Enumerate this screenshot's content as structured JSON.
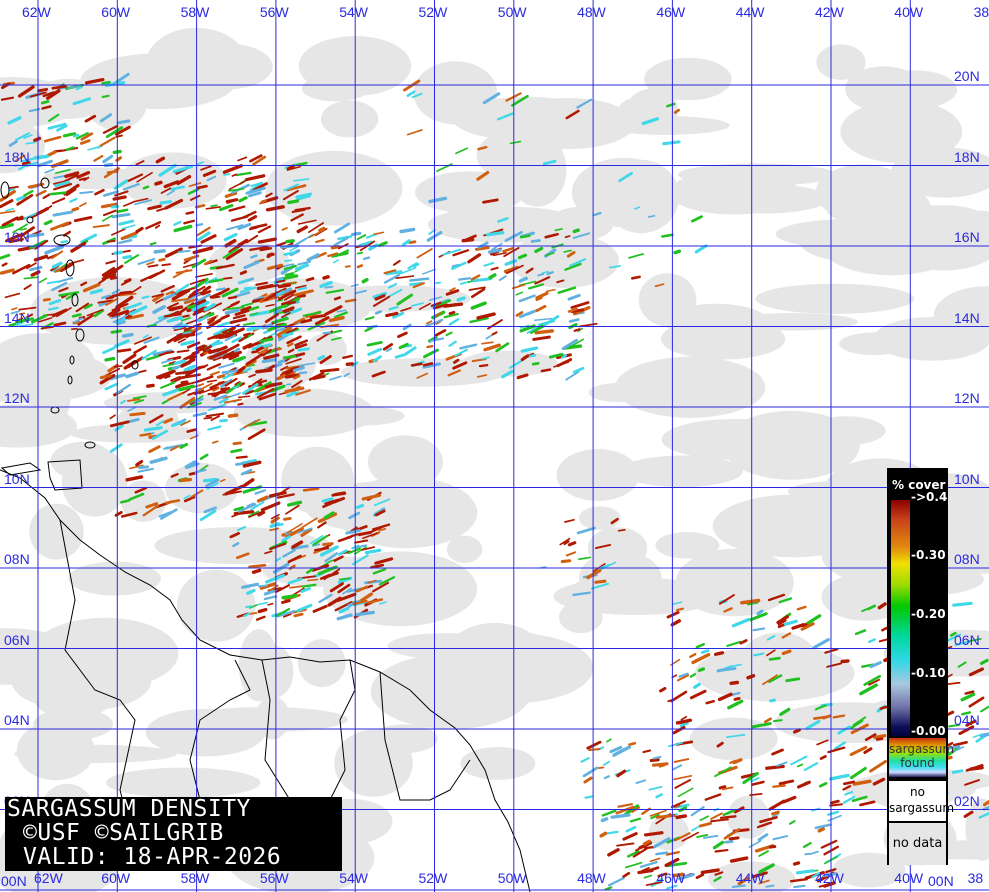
{
  "map": {
    "title": "SARGASSUM DENSITY",
    "credits": "©USF ©SAILGRIB",
    "valid": "VALID: 18-APR-2026",
    "longitude_labels": [
      "62W",
      "60W",
      "58W",
      "56W",
      "54W",
      "52W",
      "50W",
      "48W",
      "46W",
      "44W",
      "42W",
      "40W",
      "38"
    ],
    "latitude_labels_right": [
      "20N",
      "18N",
      "16N",
      "14N",
      "12N",
      "10N",
      "08N",
      "06N",
      "04N",
      "02N",
      "00N"
    ],
    "latitude_labels_left": [
      "18N",
      "16N",
      "14N",
      "12N",
      "10N",
      "08N",
      "06N",
      "04N",
      "02N",
      "00N"
    ],
    "colors": {
      "grid": "#2a2ae0",
      "cloud": "#e6e6e6",
      "land_outline": "#000000",
      "high_density": "#b01800",
      "medium": "#20c020",
      "low": "#40d8e8"
    }
  },
  "legend": {
    "title": "% cover",
    "ticks": [
      "->0.4",
      "-0.30",
      "-0.20",
      "-0.10",
      "-0.00"
    ],
    "found_label_1": "sargassum",
    "found_label_2": "found",
    "no_sargassum_1": "no",
    "no_sargassum_2": "sargassum",
    "no_data": "no data"
  }
}
